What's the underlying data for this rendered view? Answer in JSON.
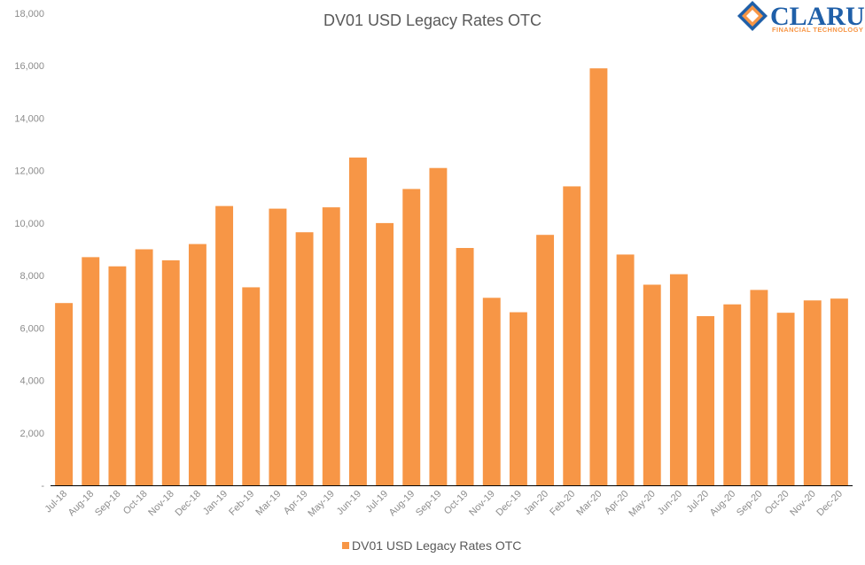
{
  "colors": {
    "bar": "#F79646",
    "axis": "#000000",
    "text": "#595959",
    "tick": "#8c8c8c",
    "logo_blue": "#1f5fa8",
    "logo_orange": "#F79646"
  },
  "logo": {
    "name": "CLARUS",
    "tagline": "FINANCIAL TECHNOLOGY"
  },
  "chart_data": {
    "type": "bar",
    "title": "DV01 USD Legacy Rates OTC",
    "xlabel": "",
    "ylabel": "",
    "ylim": [
      0,
      18000
    ],
    "yticks": [
      0,
      2000,
      4000,
      6000,
      8000,
      10000,
      12000,
      14000,
      16000,
      18000
    ],
    "ytick_labels": [
      "-",
      "2,000",
      "4,000",
      "6,000",
      "8,000",
      "10,000",
      "12,000",
      "14,000",
      "16,000",
      "18,000"
    ],
    "grid": false,
    "legend_position": "bottom",
    "categories": [
      "Jul-18",
      "Aug-18",
      "Sep-18",
      "Oct-18",
      "Nov-18",
      "Dec-18",
      "Jan-19",
      "Feb-19",
      "Mar-19",
      "Apr-19",
      "May-19",
      "Jun-19",
      "Jul-19",
      "Aug-19",
      "Sep-19",
      "Oct-19",
      "Nov-19",
      "Dec-19",
      "Jan-20",
      "Feb-20",
      "Mar-20",
      "Apr-20",
      "May-20",
      "Jun-20",
      "Jul-20",
      "Aug-20",
      "Sep-20",
      "Oct-20",
      "Nov-20",
      "Dec-20"
    ],
    "series": [
      {
        "name": "DV01 USD Legacy Rates OTC",
        "values": [
          6950,
          8700,
          8350,
          9000,
          8580,
          9200,
          10650,
          7550,
          10550,
          9650,
          10600,
          12500,
          10000,
          11300,
          12100,
          9050,
          7150,
          6600,
          9550,
          11400,
          15900,
          8800,
          7650,
          8050,
          6450,
          6900,
          7450,
          6580,
          7050,
          7120
        ]
      }
    ]
  }
}
